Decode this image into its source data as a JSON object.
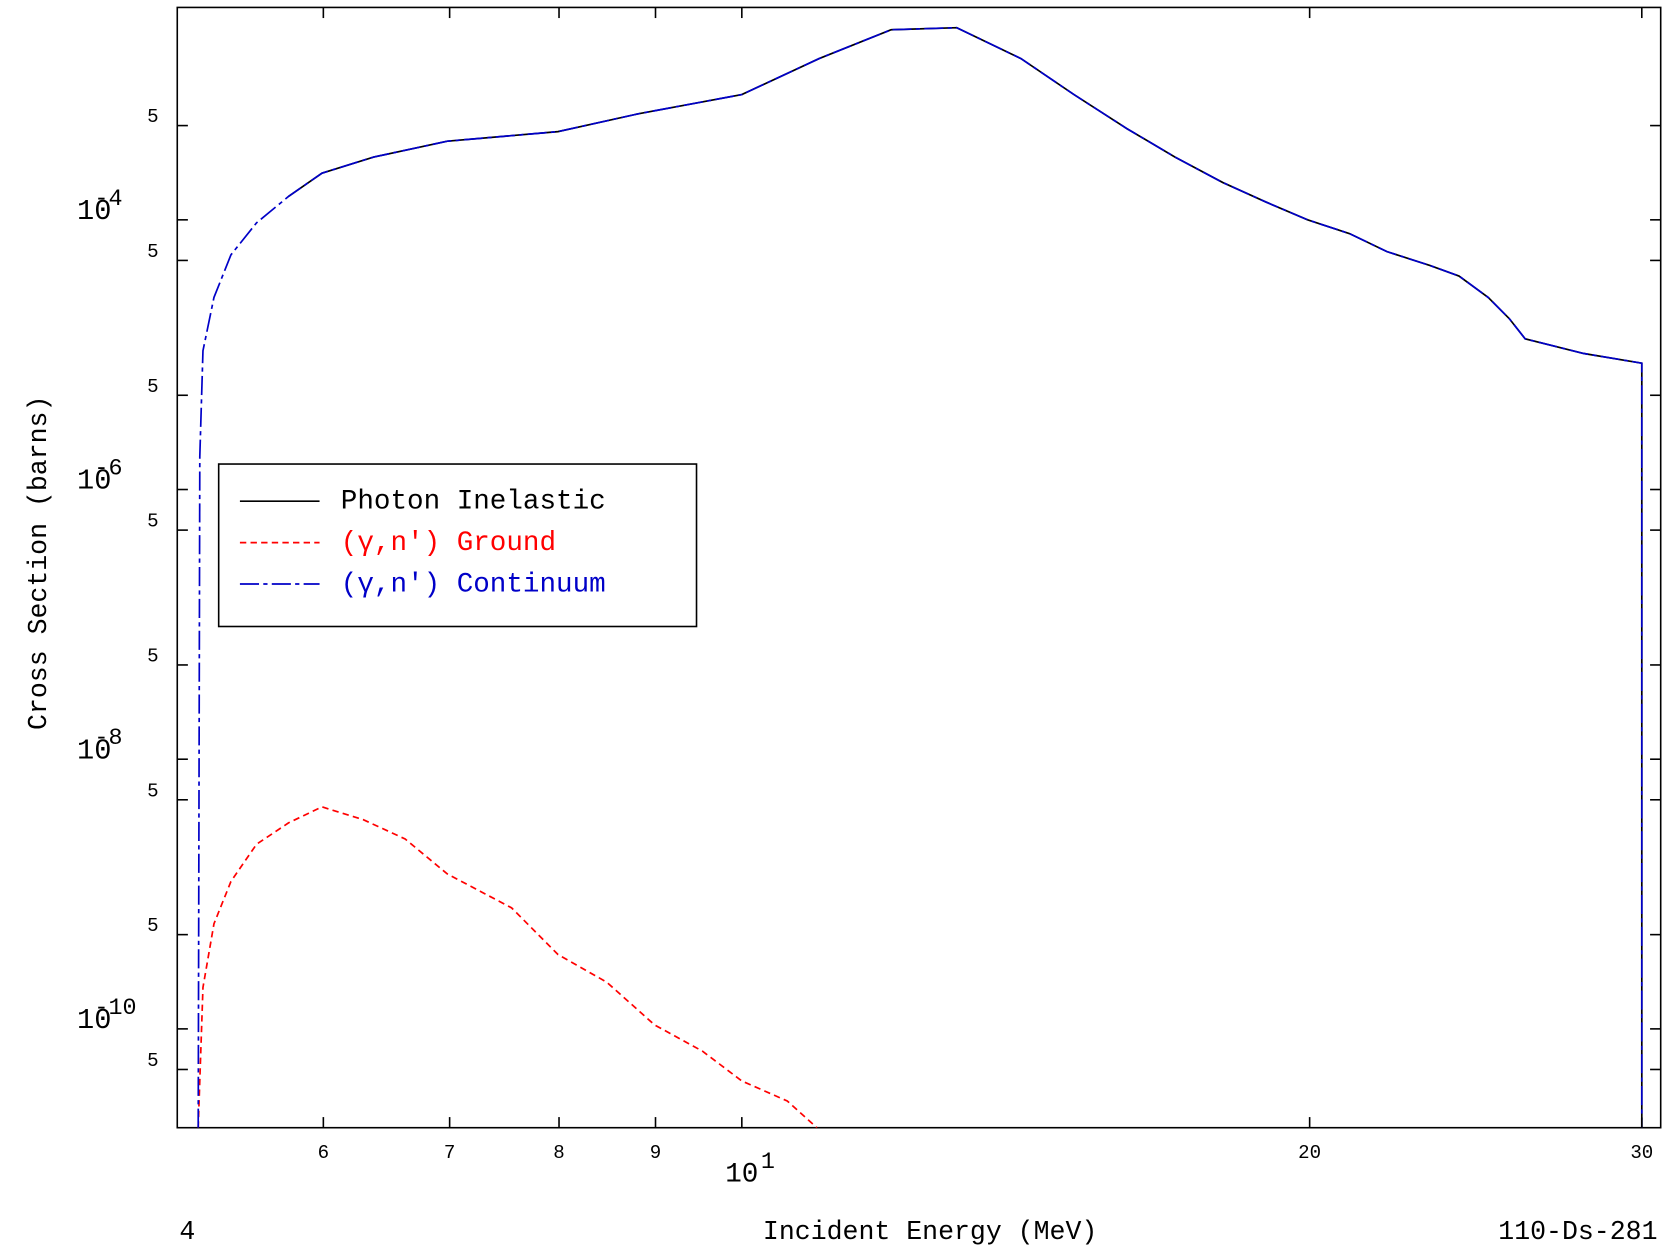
{
  "chart_data": {
    "type": "line",
    "x_label": "Incident Energy (MeV)",
    "y_label": "Cross Section (barns)",
    "annotations": [
      "4",
      "110-Ds-281"
    ],
    "log_x": true,
    "log_y": true,
    "xlim": [
      5.02,
      30.7
    ],
    "ylim": [
      1.85e-11,
      0.00376
    ],
    "xticks": [
      6,
      7,
      8,
      9,
      {
        "value": 10,
        "label": "10",
        "exponent": "1"
      },
      20,
      30
    ],
    "yticks": [
      {
        "value": 0.0005,
        "label": "5"
      },
      {
        "value": 0.0001,
        "label": "10",
        "exponent": "-4"
      },
      {
        "value": 5e-05,
        "label": "5"
      },
      {
        "value": 5e-06,
        "label": "5"
      },
      {
        "value": 1e-06,
        "label": "10",
        "exponent": "-6"
      },
      {
        "value": 5e-07,
        "label": "5"
      },
      {
        "value": 5e-08,
        "label": "5"
      },
      {
        "value": 1e-08,
        "label": "10",
        "exponent": "-8"
      },
      {
        "value": 5e-09,
        "label": "5"
      },
      {
        "value": 5e-10,
        "label": "5"
      },
      {
        "value": 1e-10,
        "label": "10",
        "exponent": "-10"
      },
      {
        "value": 5e-11,
        "label": "5"
      }
    ],
    "legend": "upper left",
    "series": [
      {
        "name": "Photon Inelastic",
        "color": "#000000",
        "dash": "none",
        "x": [
          5.75,
          5.99,
          6.38,
          6.98,
          7.99,
          8.82,
          10,
          10.99,
          12.0,
          13.0,
          14.06,
          15.0,
          16.0,
          16.97,
          17.99,
          18.95,
          19.95,
          21.0,
          21.98,
          23.16,
          24.0,
          24.87,
          25.52,
          26.02,
          27.95,
          30.0,
          30.0
        ],
        "values": [
          0.000149,
          0.000222,
          0.000292,
          0.000383,
          0.000451,
          0.000613,
          0.000849,
          0.00157,
          0.00257,
          0.00266,
          0.00157,
          0.000849,
          0.000475,
          0.000292,
          0.000189,
          0.000136,
          0.0001,
          7.9e-05,
          5.81e-05,
          4.59e-05,
          3.83e-05,
          2.66e-05,
          1.85e-05,
          1.31e-05,
          1.02e-05,
          8.65e-06,
          1.85e-11
        ]
      },
      {
        "name": "(γ,n') Ground",
        "color": "#ff0000",
        "dash": "6,4",
        "x": [
          5.15,
          5.18,
          5.25,
          5.36,
          5.53,
          5.75,
          5.99,
          6.3,
          6.63,
          6.98,
          7.55,
          7.99,
          8.48,
          8.99,
          9.53,
          10,
          10.57,
          10.96
        ],
        "values": [
          1.85e-11,
          2.03e-10,
          6.02e-10,
          1.24e-09,
          2.34e-09,
          3.37e-09,
          4.43e-09,
          3.56e-09,
          2.56e-09,
          1.41e-09,
          7.9e-10,
          3.56e-10,
          2.22e-10,
          1.07e-10,
          6.84e-11,
          4.11e-11,
          2.92e-11,
          1.85e-11
        ]
      },
      {
        "name": "(γ,n') Continuum",
        "color": "#0000c8",
        "dash": "18,4,4,4",
        "x": [
          5.15,
          5.16,
          5.18,
          5.25,
          5.36,
          5.53,
          5.75,
          5.99,
          6.38,
          6.98,
          7.99,
          8.82,
          10,
          10.99,
          12.0,
          13.0,
          14.06,
          15.0,
          16.0,
          16.97,
          17.99,
          18.95,
          19.95,
          21.0,
          21.98,
          23.16,
          24.0,
          24.87,
          25.52,
          26.02,
          27.95,
          30.0,
          30.0
        ],
        "values": [
          1.85e-11,
          1.75e-06,
          1.07e-05,
          2.66e-05,
          5.5e-05,
          9.5e-05,
          0.000149,
          0.000222,
          0.000292,
          0.000383,
          0.000451,
          0.000613,
          0.000849,
          0.00157,
          0.00257,
          0.00266,
          0.00157,
          0.000849,
          0.000475,
          0.000292,
          0.000189,
          0.000136,
          0.0001,
          7.9e-05,
          5.81e-05,
          4.59e-05,
          3.83e-05,
          2.66e-05,
          1.85e-05,
          1.31e-05,
          1.02e-05,
          8.65e-06,
          1.85e-11
        ]
      }
    ]
  }
}
